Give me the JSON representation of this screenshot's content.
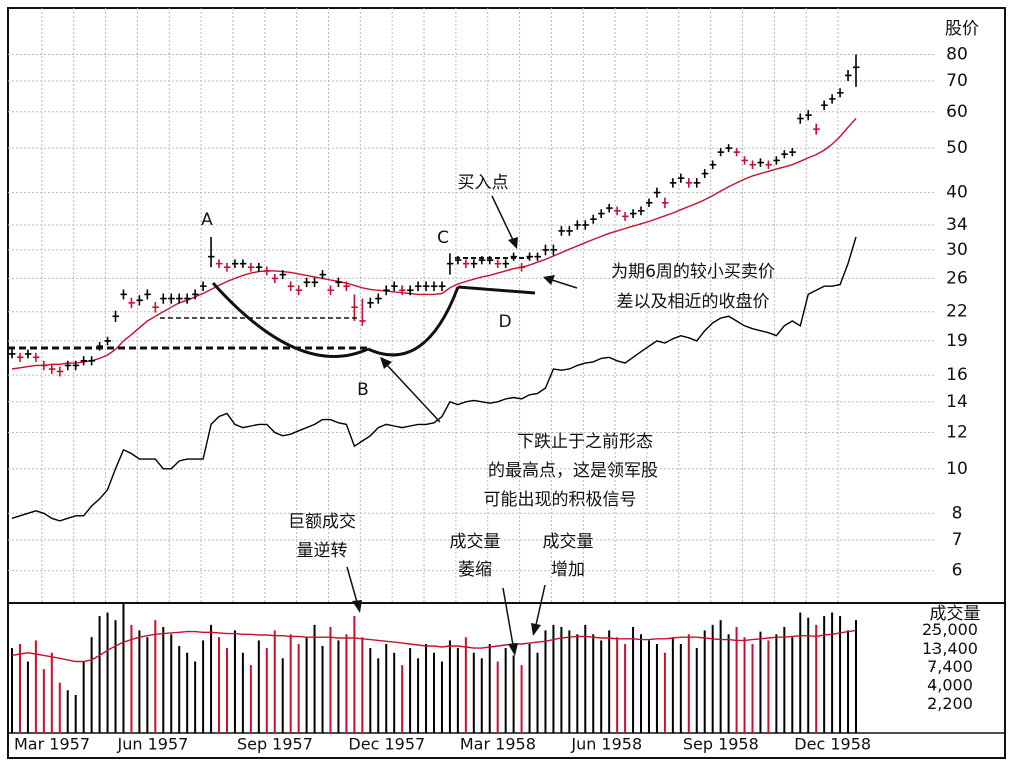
{
  "chart_data": [
    {
      "type": "ohlc",
      "y_axis_label": "股价",
      "log_scale": true,
      "grid": true,
      "ylim": [
        5.1,
        101
      ],
      "yticks": [
        80,
        70,
        60,
        50,
        40,
        34,
        30,
        26,
        22,
        19,
        16,
        14,
        12,
        10,
        8,
        7,
        6
      ],
      "up_color": "#000000",
      "down_color": "#c8102e",
      "high": [
        18.2,
        17.9,
        18.2,
        17.9,
        17.2,
        16.9,
        16.7,
        17.2,
        17.2,
        17.6,
        17.6,
        18.9,
        19.4,
        22.1,
        24.6,
        23.6,
        23.9,
        24.6,
        23.1,
        24.1,
        24.1,
        24.1,
        24.1,
        24.6,
        25.6,
        32,
        28.6,
        28.1,
        28.6,
        28.6,
        28.1,
        28.1,
        27.6,
        26.6,
        27.1,
        25.6,
        25.1,
        26.1,
        26.1,
        27.1,
        25.1,
        26.1,
        25.6,
        24,
        23.5,
        23.6,
        24.1,
        25.1,
        25.6,
        25.1,
        25.1,
        25.6,
        25.6,
        25.6,
        25.6,
        29.5,
        29.1,
        28.6,
        28.6,
        29.1,
        29.1,
        28.6,
        28.6,
        29.6,
        28.1,
        29.6,
        29.6,
        30.8,
        30.8,
        33.8,
        33.8,
        34.8,
        34.8,
        35.8,
        36.8,
        37.8,
        37.3,
        36.3,
        36.8,
        37.3,
        38.8,
        41,
        39,
        43,
        44,
        43,
        43,
        45,
        47,
        50,
        51,
        50,
        48,
        47,
        47.5,
        47,
        48,
        49.5,
        50,
        59.5,
        60.5,
        56.5,
        63.5,
        65.5,
        67.5,
        74,
        80
      ],
      "low": [
        17.4,
        17.1,
        17.4,
        17.1,
        16.4,
        16.1,
        15.9,
        16.4,
        16.4,
        16.8,
        16.8,
        18.1,
        18.6,
        20.9,
        23.4,
        22.4,
        22.7,
        23.4,
        21.9,
        22.9,
        22.9,
        22.9,
        22.9,
        23.4,
        24.4,
        27.5,
        27.4,
        26.9,
        27.4,
        27.4,
        26.9,
        26.9,
        26.4,
        25.4,
        25.9,
        24.4,
        23.9,
        24.9,
        24.9,
        25.9,
        23.9,
        24.9,
        24.4,
        21,
        20.5,
        22.4,
        22.9,
        23.9,
        24.4,
        23.9,
        23.9,
        24.4,
        24.4,
        24.4,
        24.4,
        26.5,
        27.9,
        27.4,
        27.4,
        27.9,
        27.9,
        27.4,
        27.4,
        28.4,
        26.9,
        28.4,
        28.4,
        29.2,
        29.2,
        32.2,
        32.2,
        33.2,
        33.2,
        34.2,
        35.2,
        36.2,
        35.7,
        34.7,
        35.2,
        35.7,
        37.2,
        39,
        37,
        41,
        42,
        41,
        41,
        43,
        45,
        48,
        49,
        48,
        46,
        45,
        45.5,
        45,
        46,
        47.5,
        48,
        56.5,
        57.5,
        53.5,
        60.5,
        62.5,
        64.5,
        70,
        68
      ],
      "close": [
        17.8,
        17.5,
        17.8,
        17.5,
        16.8,
        16.5,
        16.3,
        16.8,
        16.8,
        17.2,
        17.2,
        18.5,
        19,
        21.5,
        24,
        23,
        23.3,
        24,
        22.5,
        23.5,
        23.5,
        23.5,
        23.5,
        24,
        25,
        29,
        28,
        27.5,
        28,
        28,
        27.5,
        27.5,
        27,
        26,
        26.5,
        25,
        24.5,
        25.5,
        25.5,
        26.5,
        24.5,
        25.5,
        25,
        22.5,
        21,
        23,
        23.5,
        24.5,
        25,
        24.5,
        24.5,
        25,
        25,
        25,
        25,
        28,
        28.5,
        28,
        28,
        28.5,
        28.5,
        28,
        28,
        29,
        27.5,
        29,
        29,
        30,
        30,
        33,
        33,
        34,
        34,
        35,
        36,
        37,
        36.5,
        35.5,
        36,
        36.5,
        38,
        40,
        38,
        42,
        43,
        42,
        42,
        44,
        46,
        49,
        50,
        49,
        47,
        46,
        46.5,
        46,
        47,
        48.5,
        49,
        58,
        59,
        55,
        62,
        64,
        66,
        72,
        75
      ],
      "lines": [
        {
          "color": "#c8102e",
          "values": [
            16.5,
            16.6,
            16.7,
            16.8,
            16.8,
            16.9,
            16.9,
            17,
            17,
            17.1,
            17.2,
            17.4,
            17.7,
            18.2,
            19,
            19.6,
            20.3,
            21,
            21.5,
            22,
            22.5,
            23,
            23.3,
            23.7,
            24.1,
            24.6,
            25.1,
            25.6,
            26,
            26.4,
            26.7,
            26.9,
            27,
            27,
            26.9,
            26.8,
            26.6,
            26.4,
            26.2,
            26,
            25.8,
            25.6,
            25.4,
            25.1,
            24.8,
            24.6,
            24.5,
            24.4,
            24.3,
            24.2,
            24.1,
            24,
            24,
            24,
            24.1,
            24.8,
            25.3,
            25.6,
            25.9,
            26.2,
            26.4,
            26.7,
            27,
            27.3,
            27.5,
            27.8,
            28.2,
            28.6,
            29.1,
            29.6,
            30.1,
            30.6,
            31.1,
            31.6,
            32.1,
            32.6,
            33,
            33.4,
            33.8,
            34.2,
            34.6,
            35.1,
            35.6,
            36.1,
            36.7,
            37.3,
            37.9,
            38.6,
            39.4,
            40.3,
            41.2,
            42,
            42.8,
            43.5,
            44,
            44.5,
            45,
            45.5,
            46,
            46.8,
            47.6,
            48.4,
            49.5,
            51,
            53,
            55.5,
            58
          ]
        },
        {
          "color": "#000000",
          "values": [
            7.8,
            7.9,
            8,
            8.1,
            8,
            7.8,
            7.7,
            7.8,
            7.9,
            7.9,
            8.3,
            8.6,
            9,
            10,
            11,
            10.8,
            10.5,
            10.5,
            10.5,
            10,
            10,
            10.4,
            10.5,
            10.5,
            10.5,
            12.5,
            13,
            13.2,
            12.5,
            12.3,
            12.4,
            12.5,
            12.5,
            12,
            11.8,
            11.9,
            12.1,
            12.3,
            12.5,
            12.8,
            12.8,
            12.6,
            12.5,
            11.2,
            11.5,
            11.8,
            12.3,
            12.5,
            12.4,
            12.3,
            12.4,
            12.5,
            12.5,
            12.6,
            13,
            14,
            13.8,
            14,
            14.1,
            14,
            13.9,
            14,
            14.2,
            14.3,
            14.2,
            14.5,
            14.6,
            15,
            16.5,
            16.4,
            16.5,
            16.8,
            17,
            17.1,
            17.4,
            17.5,
            17.2,
            17,
            17.5,
            18,
            18.5,
            19,
            18.8,
            19.2,
            19.5,
            19.3,
            19,
            20,
            20.8,
            21.3,
            21.5,
            21,
            20.5,
            20.2,
            20,
            19.8,
            19.5,
            20.5,
            21,
            20.5,
            24,
            24.5,
            25,
            25,
            25.2,
            28,
            32
          ]
        }
      ],
      "annotations": {
        "a": "A",
        "b": "B",
        "c": "C",
        "d": "D",
        "buy_point": "买入点",
        "tight_area": [
          "为期6周的较小买卖价",
          "差以及相近的收盘价"
        ],
        "pullback": [
          "下跌止于之前形态",
          "的最高点，这是领军股",
          "可能出现的积极信号"
        ],
        "volume_reversal": [
          "巨额成交",
          "量逆转"
        ],
        "volume_dry_up": [
          "成交量",
          "萎缩"
        ],
        "volume_increase": [
          "成交量",
          "增加"
        ]
      }
    },
    {
      "type": "bar",
      "y_axis_label": "成交量",
      "log_scale": true,
      "ylim": [
        860,
        61500
      ],
      "yticks": [
        {
          "value": 25000,
          "label": "25,000"
        },
        {
          "value": 13400,
          "label": "13,400"
        },
        {
          "value": 7400,
          "label": "7,400"
        },
        {
          "value": 4000,
          "label": "4,000"
        },
        {
          "value": 2200,
          "label": "2,200"
        }
      ],
      "categories": [
        "Mar 1957",
        null,
        null,
        null,
        null,
        null,
        null,
        null,
        null,
        null,
        null,
        null,
        null,
        "Jun 1957",
        null,
        null,
        null,
        null,
        null,
        null,
        null,
        null,
        null,
        null,
        null,
        null,
        null,
        null,
        "Sep 1957",
        null,
        null,
        null,
        null,
        null,
        null,
        null,
        null,
        null,
        null,
        null,
        null,
        null,
        "Dec 1957",
        null,
        null,
        null,
        null,
        null,
        null,
        null,
        null,
        null,
        null,
        null,
        null,
        null,
        "Mar 1958",
        null,
        null,
        null,
        null,
        null,
        null,
        null,
        null,
        null,
        null,
        null,
        null,
        null,
        "Jun 1958",
        null,
        null,
        null,
        null,
        null,
        null,
        null,
        null,
        null,
        null,
        null,
        null,
        null,
        "Sep 1958",
        null,
        null,
        null,
        null,
        null,
        null,
        null,
        null,
        null,
        null,
        null,
        null,
        null,
        "Dec 1958",
        null,
        null,
        null,
        null,
        null,
        null,
        null,
        null
      ],
      "values": [
        14000,
        16000,
        9000,
        18000,
        7000,
        12000,
        4500,
        3500,
        3000,
        9000,
        20000,
        40000,
        45000,
        35000,
        60000,
        30000,
        25000,
        20000,
        35000,
        28000,
        22000,
        15000,
        12000,
        9000,
        18000,
        30000,
        20000,
        14000,
        25000,
        12000,
        8000,
        18000,
        14000,
        25000,
        10000,
        22000,
        16000,
        20000,
        30000,
        15000,
        28000,
        18000,
        22000,
        40000,
        20000,
        14000,
        10000,
        16000,
        12000,
        8000,
        14000,
        10000,
        16000,
        12000,
        9000,
        18000,
        14000,
        20000,
        12000,
        10000,
        16000,
        9000,
        14000,
        11000,
        8000,
        16000,
        12000,
        25000,
        30000,
        28000,
        25000,
        22000,
        30000,
        22000,
        18000,
        25000,
        20000,
        16000,
        28000,
        22000,
        18000,
        16000,
        12000,
        20000,
        16000,
        22000,
        14000,
        25000,
        30000,
        35000,
        22000,
        28000,
        20000,
        16000,
        24000,
        18000,
        22000,
        28000,
        20000,
        45000,
        38000,
        30000,
        40000,
        45000,
        40000,
        25000,
        35000
      ],
      "average": {
        "color": "#c8102e",
        "values": [
          11000,
          11500,
          12000,
          11500,
          11000,
          10500,
          10000,
          9500,
          9000,
          9000,
          9500,
          11000,
          13000,
          15000,
          17000,
          18500,
          20000,
          21000,
          22000,
          22500,
          23000,
          23500,
          24000,
          24000,
          23500,
          23500,
          23000,
          22500,
          22500,
          22000,
          22000,
          21500,
          21500,
          21000,
          21000,
          20500,
          20500,
          20000,
          20000,
          20000,
          20000,
          19500,
          19500,
          19500,
          19000,
          18500,
          18000,
          17500,
          17000,
          16500,
          16000,
          15500,
          15000,
          15000,
          14500,
          15000,
          15000,
          14500,
          14000,
          14000,
          14500,
          15000,
          15500,
          16000,
          16000,
          16500,
          17000,
          17500,
          18500,
          19500,
          20000,
          20500,
          20500,
          20000,
          19500,
          19500,
          19000,
          19000,
          19000,
          18500,
          18500,
          19000,
          19000,
          19500,
          20000,
          20000,
          20000,
          19500,
          19000,
          18500,
          18500,
          18000,
          18000,
          18500,
          19000,
          19500,
          20000,
          20000,
          20500,
          21000,
          21000,
          20500,
          21500,
          22000,
          23000,
          24000,
          25000
        ]
      }
    }
  ]
}
